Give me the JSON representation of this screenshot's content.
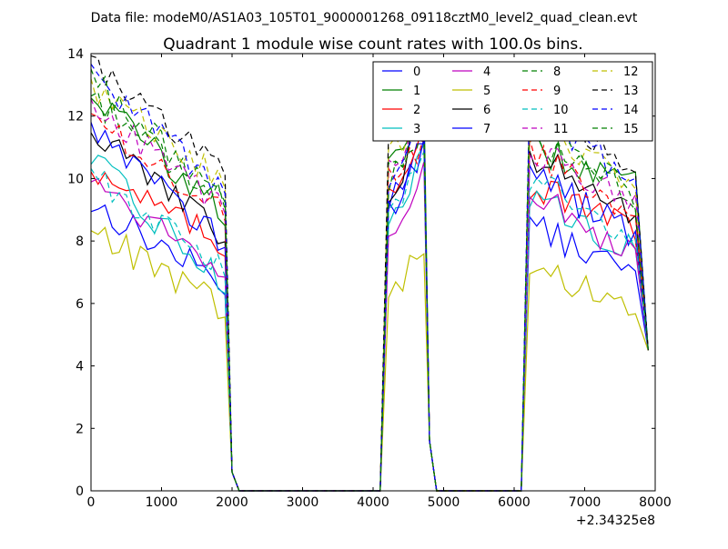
{
  "figure": {
    "suptitle": "Data file: modeM0/AS1A03_105T01_9000001268_09118cztM0_level2_quad_clean.evt"
  },
  "chart_data": {
    "type": "line",
    "title": "Quadrant 1 module wise count rates with 100.0s bins.",
    "xlabel": "",
    "ylabel": "",
    "x_offset_label": "+2.34325e8",
    "xlim": [
      0,
      8000
    ],
    "ylim": [
      0,
      14
    ],
    "xticks": [
      0,
      1000,
      2000,
      3000,
      4000,
      5000,
      6000,
      7000,
      8000
    ],
    "yticks": [
      0,
      2,
      4,
      6,
      8,
      10,
      12,
      14
    ],
    "grid": false,
    "legend_position": "top-right",
    "legend_columns": 4,
    "segments": [
      {
        "x_start": 0,
        "x_end": 1900
      },
      {
        "x_start": 4220,
        "x_end": 4720
      },
      {
        "x_start": 6220,
        "x_end": 7800
      }
    ],
    "series": [
      {
        "name": "0",
        "color": "#0000ff",
        "dash": "solid",
        "levels": [
          9.2,
          6.6,
          9.0,
          11.6,
          8.5,
          6.8
        ]
      },
      {
        "name": "1",
        "color": "#008000",
        "dash": "solid",
        "levels": [
          12.8,
          8.8,
          10.6,
          12.4,
          11.0,
          9.7
        ]
      },
      {
        "name": "2",
        "color": "#ff0000",
        "dash": "solid",
        "levels": [
          10.4,
          7.8,
          9.6,
          11.6,
          9.8,
          8.2
        ]
      },
      {
        "name": "3",
        "color": "#00bfbf",
        "dash": "solid",
        "levels": [
          10.6,
          6.6,
          8.4,
          11.0,
          9.4,
          7.6
        ]
      },
      {
        "name": "4",
        "color": "#bf00bf",
        "dash": "solid",
        "levels": [
          10.0,
          7.1,
          8.0,
          10.6,
          9.6,
          7.3
        ]
      },
      {
        "name": "5",
        "color": "#bfbf00",
        "dash": "solid",
        "levels": [
          8.4,
          5.8,
          6.0,
          7.8,
          7.0,
          6.0
        ]
      },
      {
        "name": "6",
        "color": "#000000",
        "dash": "solid",
        "levels": [
          11.5,
          8.2,
          9.0,
          12.0,
          10.8,
          8.8
        ]
      },
      {
        "name": "7",
        "color": "#0000ff",
        "dash": "solid",
        "levels": [
          11.8,
          8.0,
          9.0,
          10.8,
          10.2,
          8.0
        ]
      },
      {
        "name": "8",
        "color": "#008000",
        "dash": "dashed",
        "levels": [
          12.6,
          9.2,
          10.2,
          11.4,
          11.2,
          9.4
        ]
      },
      {
        "name": "9",
        "color": "#ff0000",
        "dash": "dashed",
        "levels": [
          12.0,
          8.8,
          10.0,
          11.2,
          10.8,
          8.9
        ]
      },
      {
        "name": "10",
        "color": "#00bfbf",
        "dash": "dashed",
        "levels": [
          10.2,
          7.0,
          8.6,
          10.8,
          10.0,
          7.9
        ]
      },
      {
        "name": "11",
        "color": "#bf00bf",
        "dash": "dashed",
        "levels": [
          12.4,
          9.0,
          10.2,
          11.8,
          11.0,
          9.0
        ]
      },
      {
        "name": "12",
        "color": "#bfbf00",
        "dash": "dashed",
        "levels": [
          13.0,
          9.8,
          10.6,
          11.8,
          11.6,
          9.9
        ]
      },
      {
        "name": "13",
        "color": "#000000",
        "dash": "dashed",
        "levels": [
          13.7,
          10.2,
          11.0,
          12.2,
          12.6,
          10.1
        ]
      },
      {
        "name": "14",
        "color": "#0000ff",
        "dash": "dashed",
        "levels": [
          13.4,
          9.6,
          10.2,
          11.6,
          12.4,
          9.6
        ]
      },
      {
        "name": "15",
        "color": "#008000",
        "dash": "dashed",
        "levels": [
          13.2,
          9.3,
          10.0,
          11.4,
          12.0,
          9.3
        ]
      }
    ]
  }
}
